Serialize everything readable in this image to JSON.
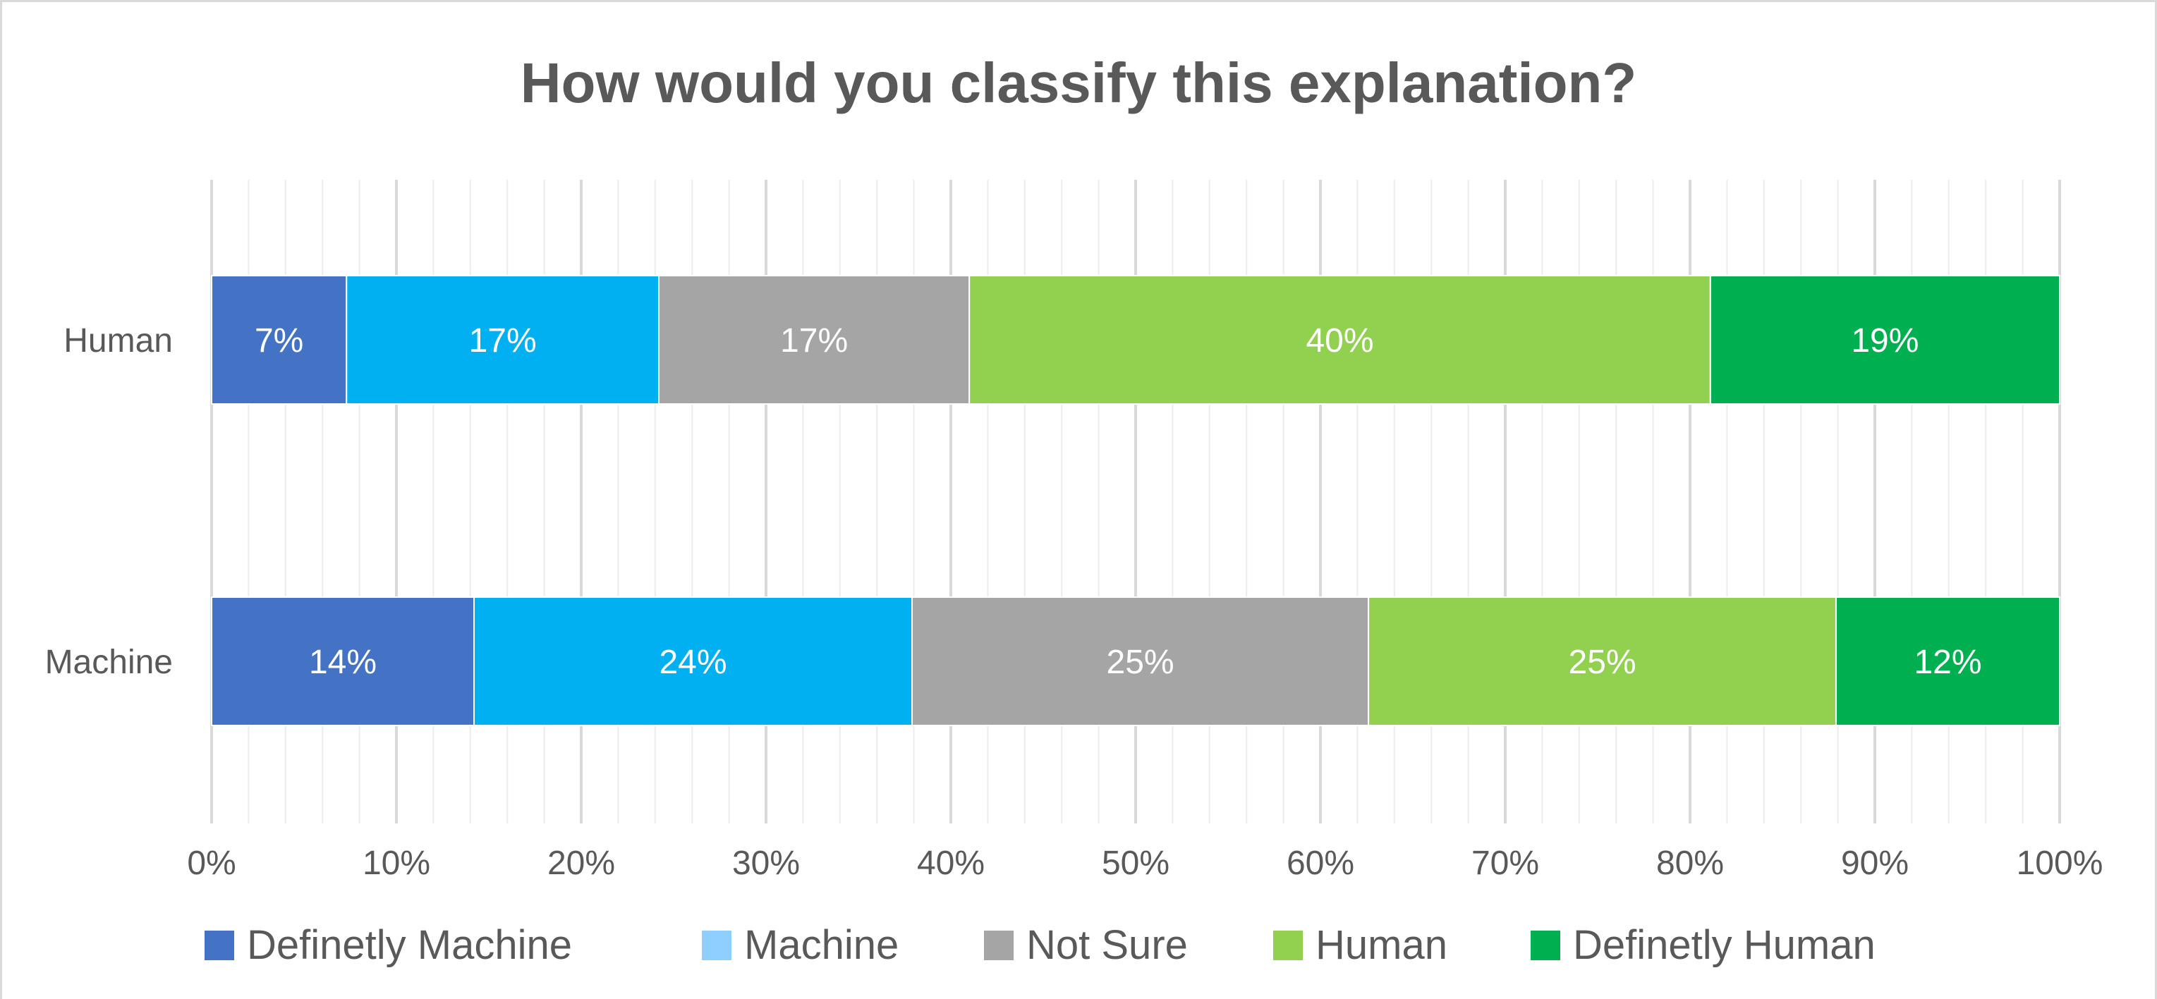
{
  "chart_data": {
    "type": "bar",
    "orientation": "horizontal",
    "stacked": "100%",
    "title": "How would you classify this explanation?",
    "categories": [
      "Human",
      "Machine"
    ],
    "series": [
      {
        "name": "Definetly Machine",
        "color": "#4472C4",
        "values": [
          7.3,
          14.2
        ],
        "labels": [
          "7%",
          "14%"
        ]
      },
      {
        "name": "Machine",
        "color": "#00B0F0",
        "values": [
          16.9,
          23.7
        ],
        "labels": [
          "17%",
          "24%"
        ]
      },
      {
        "name": "Not Sure",
        "color": "#A5A5A5",
        "values": [
          16.8,
          24.7
        ],
        "labels": [
          "17%",
          "25%"
        ]
      },
      {
        "name": "Human",
        "color": "#92D050",
        "values": [
          40.1,
          25.3
        ],
        "labels": [
          "40%",
          "25%"
        ]
      },
      {
        "name": "Definetly Human",
        "color": "#00B050",
        "values": [
          18.9,
          12.1
        ],
        "labels": [
          "19%",
          "12%"
        ]
      }
    ],
    "legend_colors": [
      "#4472C4",
      "#8FCFFF",
      "#A5A5A5",
      "#92D050",
      "#00B050"
    ],
    "xlim": [
      0,
      100
    ],
    "x_ticks": [
      "0%",
      "10%",
      "20%",
      "30%",
      "40%",
      "50%",
      "60%",
      "70%",
      "80%",
      "90%",
      "100%"
    ],
    "grid": true,
    "legend": "bottom"
  }
}
